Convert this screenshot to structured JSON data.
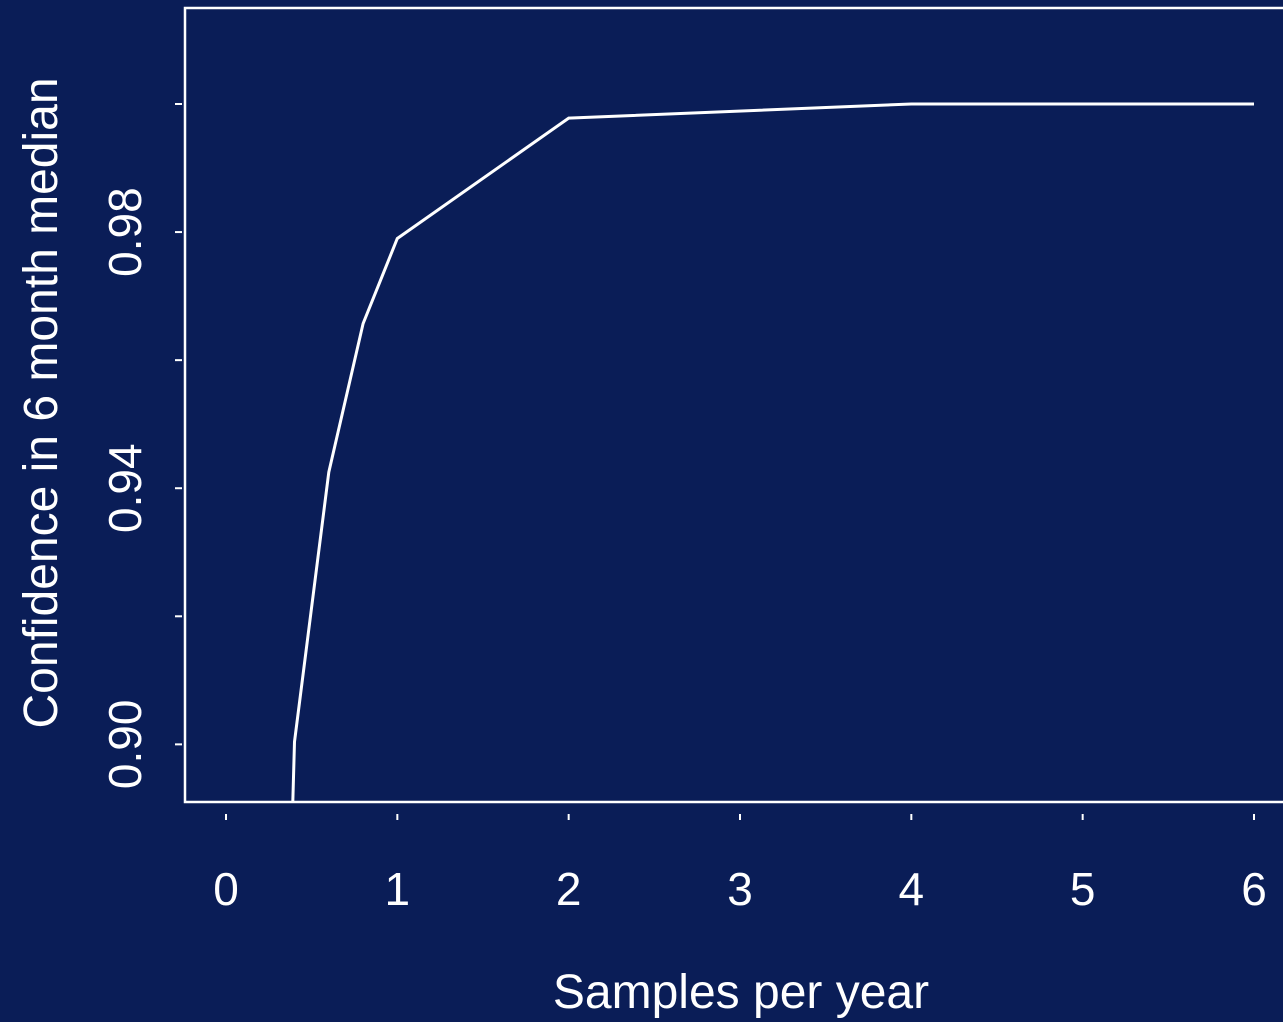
{
  "colors": {
    "background": "#0a1d57",
    "foreground": "#ffffff"
  },
  "chart_data": {
    "type": "line",
    "title": "",
    "xlabel": "Samples per year",
    "ylabel": "Confidence in 6 month median",
    "xlim": [
      0,
      6
    ],
    "ylim": [
      0.891,
      1.0
    ],
    "x_ticks": [
      0,
      1,
      2,
      3,
      4,
      5,
      6
    ],
    "x_tick_labels": [
      "0",
      "1",
      "2",
      "3",
      "4",
      "5",
      "6"
    ],
    "y_ticks": [
      0.9,
      0.92,
      0.94,
      0.96,
      0.98,
      1.0
    ],
    "y_tick_labels": [
      "0.90",
      "",
      "0.94",
      "",
      "0.98",
      ""
    ],
    "grid": false,
    "legend": "none",
    "series": [
      {
        "x": [
          0.39,
          0.4,
          0.6,
          0.8,
          1.0,
          2.0,
          4.0,
          6.0
        ],
        "y": [
          0.891,
          0.9004,
          0.9425,
          0.9657,
          0.979,
          0.9978,
          1.0,
          1.0
        ]
      }
    ]
  }
}
